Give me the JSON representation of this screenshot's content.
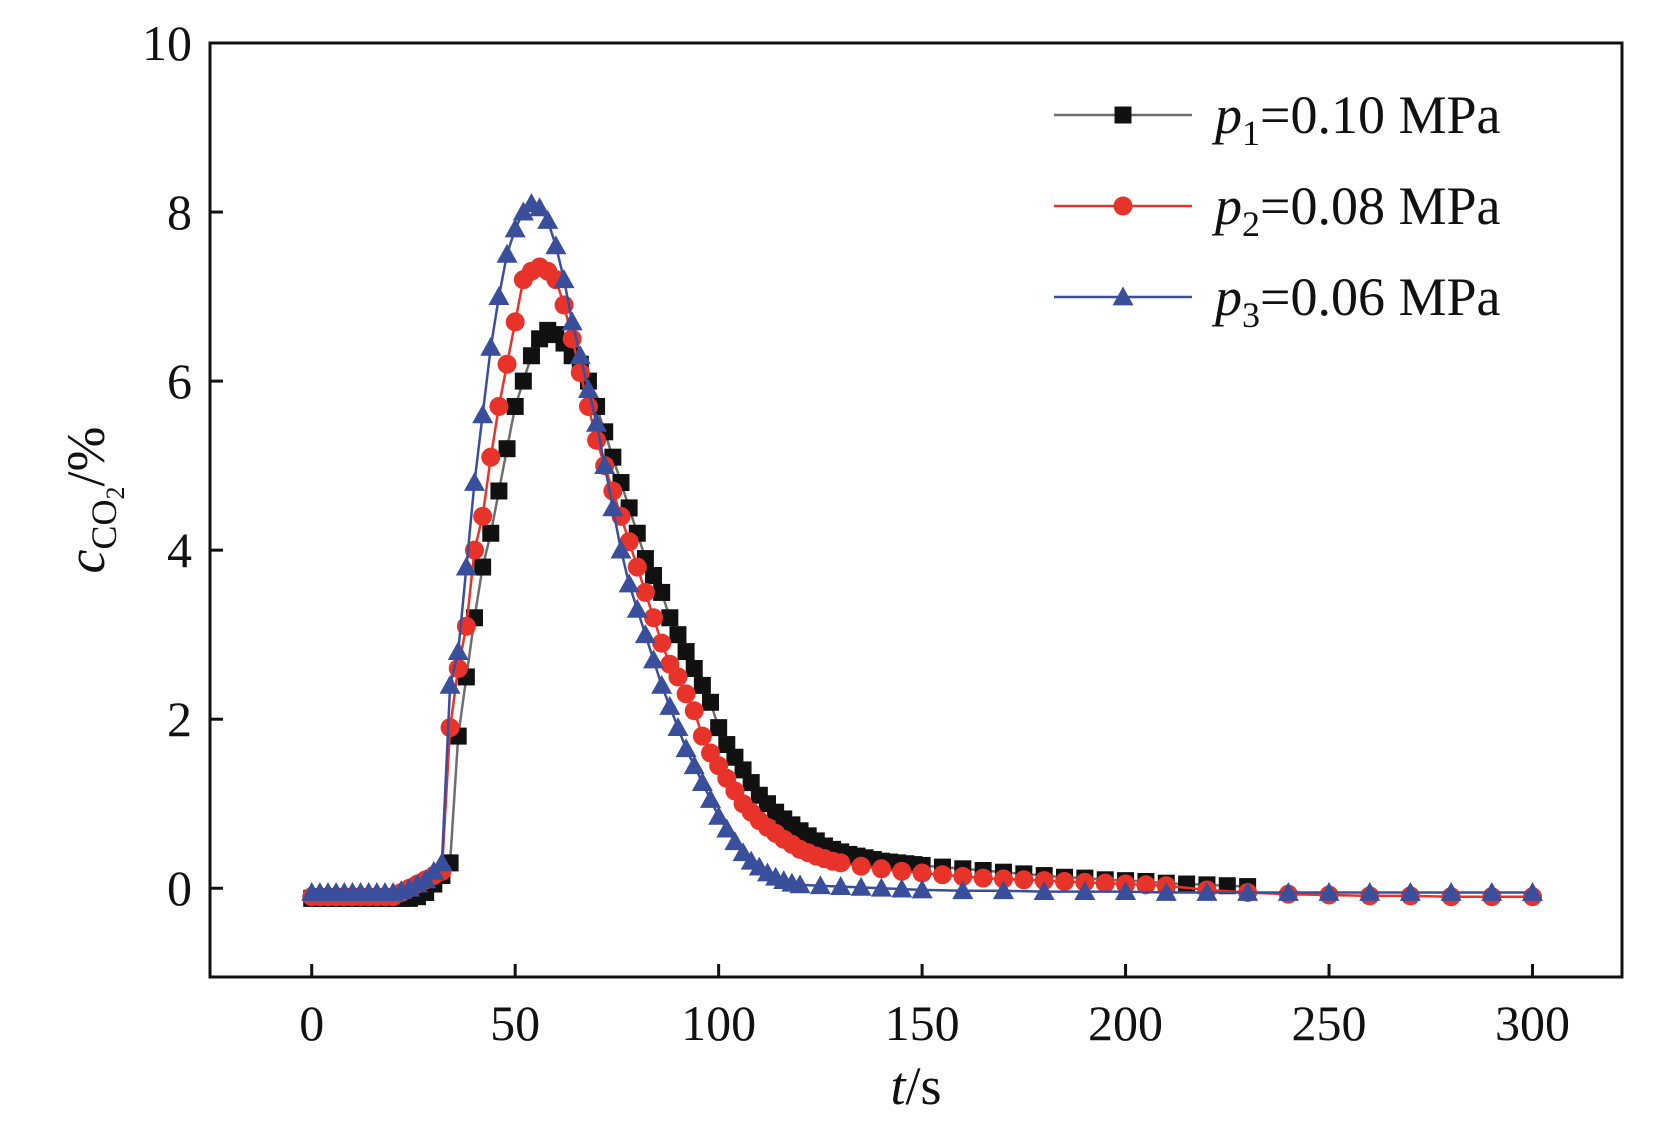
{
  "chart_data": {
    "type": "line",
    "title": "",
    "xlabel": {
      "var": "t",
      "unit": "/s"
    },
    "ylabel": {
      "var": "c",
      "sub": "CO",
      "subsub": "2",
      "unit": "/%"
    },
    "xlim": [
      -25,
      322
    ],
    "ylim": [
      -1.05,
      10
    ],
    "xticks": [
      0,
      50,
      100,
      150,
      200,
      250,
      300
    ],
    "yticks": [
      0,
      2,
      4,
      6,
      8,
      10
    ],
    "grid": false,
    "legend_position": "top-right",
    "series": [
      {
        "name": {
          "var": "p",
          "sub": "1",
          "rest": "=0.10 MPa"
        },
        "color": "#111111",
        "line_color": "#6e6e6e",
        "marker": "square",
        "x": [
          0,
          2,
          4,
          6,
          8,
          10,
          12,
          14,
          16,
          18,
          20,
          22,
          24,
          26,
          28,
          30,
          32,
          34,
          36,
          38,
          40,
          42,
          44,
          46,
          48,
          50,
          52,
          54,
          56,
          58,
          60,
          62,
          64,
          66,
          68,
          70,
          72,
          74,
          76,
          78,
          80,
          82,
          84,
          86,
          88,
          90,
          92,
          94,
          96,
          98,
          100,
          102,
          104,
          106,
          108,
          110,
          112,
          114,
          116,
          118,
          120,
          122,
          124,
          126,
          128,
          130,
          132,
          134,
          136,
          138,
          140,
          142,
          144,
          146,
          148,
          150,
          155,
          160,
          165,
          170,
          175,
          180,
          185,
          190,
          195,
          200,
          205,
          210,
          215,
          220,
          225,
          230
        ],
        "y": [
          -0.12,
          -0.12,
          -0.12,
          -0.12,
          -0.12,
          -0.12,
          -0.12,
          -0.12,
          -0.12,
          -0.12,
          -0.12,
          -0.12,
          -0.12,
          -0.1,
          -0.05,
          0.05,
          0.15,
          0.3,
          1.8,
          2.5,
          3.2,
          3.8,
          4.2,
          4.7,
          5.2,
          5.7,
          6.0,
          6.3,
          6.5,
          6.6,
          6.55,
          6.45,
          6.3,
          6.2,
          6.0,
          5.7,
          5.4,
          5.1,
          4.8,
          4.5,
          4.2,
          3.9,
          3.7,
          3.5,
          3.2,
          3.0,
          2.8,
          2.6,
          2.4,
          2.2,
          1.9,
          1.7,
          1.55,
          1.4,
          1.25,
          1.1,
          1.0,
          0.9,
          0.82,
          0.75,
          0.68,
          0.62,
          0.56,
          0.5,
          0.46,
          0.43,
          0.4,
          0.38,
          0.36,
          0.34,
          0.32,
          0.31,
          0.3,
          0.29,
          0.28,
          0.27,
          0.25,
          0.23,
          0.21,
          0.19,
          0.17,
          0.15,
          0.13,
          0.12,
          0.1,
          0.09,
          0.08,
          0.06,
          0.05,
          0.04,
          0.03,
          0.02
        ]
      },
      {
        "name": {
          "var": "p",
          "sub": "2",
          "rest": "=0.08 MPa"
        },
        "color": "#e8332b",
        "line_color": "#e8332b",
        "marker": "circle",
        "x": [
          0,
          2,
          4,
          6,
          8,
          10,
          12,
          14,
          16,
          18,
          20,
          22,
          24,
          26,
          28,
          30,
          32,
          34,
          36,
          38,
          40,
          42,
          44,
          46,
          48,
          50,
          52,
          54,
          56,
          58,
          60,
          62,
          64,
          66,
          68,
          70,
          72,
          74,
          76,
          78,
          80,
          82,
          84,
          86,
          88,
          90,
          92,
          94,
          96,
          98,
          100,
          102,
          104,
          106,
          108,
          110,
          112,
          114,
          116,
          118,
          120,
          122,
          124,
          126,
          128,
          130,
          135,
          140,
          145,
          150,
          155,
          160,
          165,
          170,
          175,
          180,
          185,
          190,
          195,
          200,
          205,
          210,
          220,
          230,
          240,
          250,
          260,
          270,
          280,
          290,
          300
        ],
        "y": [
          -0.1,
          -0.1,
          -0.1,
          -0.1,
          -0.1,
          -0.1,
          -0.1,
          -0.1,
          -0.1,
          -0.1,
          -0.1,
          -0.05,
          0.0,
          0.05,
          0.1,
          0.15,
          0.2,
          1.9,
          2.6,
          3.1,
          4.0,
          4.4,
          5.1,
          5.7,
          6.2,
          6.7,
          7.2,
          7.3,
          7.35,
          7.3,
          7.2,
          6.9,
          6.5,
          6.1,
          5.7,
          5.3,
          5.0,
          4.7,
          4.4,
          4.1,
          3.8,
          3.5,
          3.2,
          2.9,
          2.65,
          2.5,
          2.3,
          2.1,
          1.8,
          1.6,
          1.45,
          1.3,
          1.15,
          1.0,
          0.9,
          0.8,
          0.72,
          0.65,
          0.58,
          0.52,
          0.46,
          0.42,
          0.38,
          0.35,
          0.32,
          0.3,
          0.26,
          0.23,
          0.2,
          0.18,
          0.16,
          0.14,
          0.12,
          0.11,
          0.1,
          0.09,
          0.08,
          0.07,
          0.06,
          0.05,
          0.04,
          0.03,
          -0.02,
          -0.05,
          -0.07,
          -0.08,
          -0.09,
          -0.09,
          -0.1,
          -0.1,
          -0.1
        ]
      },
      {
        "name": {
          "var": "p",
          "sub": "3",
          "rest": "=0.06 MPa"
        },
        "color": "#3a4f9c",
        "line_color": "#3a4f9c",
        "marker": "triangle",
        "x": [
          0,
          2,
          4,
          6,
          8,
          10,
          12,
          14,
          16,
          18,
          20,
          22,
          24,
          26,
          28,
          30,
          32,
          34,
          36,
          38,
          40,
          42,
          44,
          46,
          48,
          50,
          52,
          54,
          56,
          58,
          60,
          62,
          64,
          66,
          68,
          70,
          72,
          74,
          76,
          78,
          80,
          82,
          84,
          86,
          88,
          90,
          92,
          94,
          96,
          98,
          100,
          102,
          104,
          106,
          108,
          110,
          112,
          114,
          116,
          118,
          120,
          125,
          130,
          135,
          140,
          145,
          150,
          160,
          170,
          180,
          190,
          200,
          210,
          220,
          230,
          240,
          250,
          260,
          270,
          280,
          290,
          300
        ],
        "y": [
          -0.05,
          -0.05,
          -0.05,
          -0.05,
          -0.05,
          -0.05,
          -0.05,
          -0.05,
          -0.05,
          -0.05,
          -0.05,
          -0.03,
          0.0,
          0.05,
          0.1,
          0.2,
          0.3,
          2.4,
          2.8,
          3.8,
          4.8,
          5.6,
          6.4,
          7.0,
          7.5,
          7.8,
          8.0,
          8.1,
          8.05,
          7.9,
          7.6,
          7.2,
          6.7,
          6.3,
          5.9,
          5.5,
          5.0,
          4.5,
          4.0,
          3.6,
          3.3,
          3.0,
          2.7,
          2.4,
          2.15,
          1.9,
          1.65,
          1.45,
          1.25,
          1.05,
          0.85,
          0.7,
          0.55,
          0.42,
          0.32,
          0.25,
          0.18,
          0.13,
          0.09,
          0.06,
          0.04,
          0.03,
          0.02,
          0.01,
          0.0,
          -0.01,
          -0.02,
          -0.03,
          -0.03,
          -0.04,
          -0.04,
          -0.04,
          -0.05,
          -0.05,
          -0.05,
          -0.05,
          -0.05,
          -0.05,
          -0.05,
          -0.05,
          -0.05,
          -0.05
        ]
      }
    ]
  }
}
